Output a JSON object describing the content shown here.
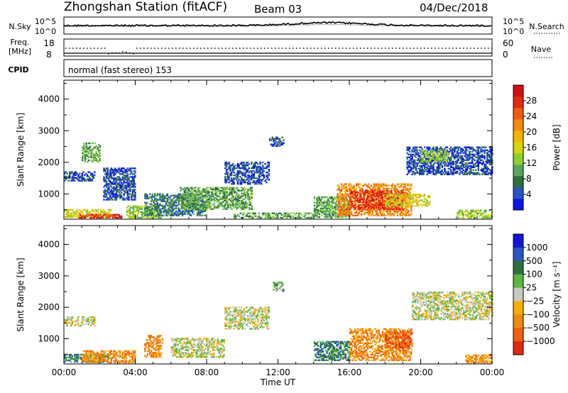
{
  "header": {
    "title": "Zhongshan Station (fitACF)",
    "beam": "Beam 03",
    "date": "04/Dec/2018"
  },
  "panels": {
    "nsky_label": "N.Sky",
    "nsearch_label": "N.Search",
    "nsky_ticks": [
      "10^5",
      "10^0"
    ],
    "nsearch_ticks": [
      "10^5",
      "10^0"
    ],
    "freq_label_line1": "Freq.",
    "freq_label_line2": "[MHz]",
    "freq_ticks": [
      "18",
      "8"
    ],
    "nave_label": "Nave",
    "nave_ticks": [
      "60",
      "0"
    ],
    "cpid_label": "CPID",
    "cpid_text": "normal (fast stereo) 153"
  },
  "chart_data": [
    {
      "type": "heatmap",
      "name": "power",
      "ylabel": "Slant Range [km]",
      "xlabel": "",
      "x_ticks": [
        "00:00",
        "04:00",
        "08:00",
        "12:00",
        "16:00",
        "20:00",
        "00:00"
      ],
      "y_ticks": [
        1000,
        2000,
        3000,
        4000
      ],
      "ylim": [
        200,
        4600
      ],
      "colorbar_label": "Power [dB]",
      "colorbar_ticks": [
        "4",
        "8",
        "12",
        "16",
        "20",
        "24",
        "28"
      ],
      "colorbar_colors": [
        "#0a17e6",
        "#2753c9",
        "#2f6f3f",
        "#58a85b",
        "#8ccf2f",
        "#d6d40f",
        "#f6b200",
        "#f58a10",
        "#f05a10",
        "#e22a10",
        "#d40f0f"
      ],
      "regions": [
        {
          "t": [
            0.0,
            1.7
          ],
          "r": [
            1400,
            1700
          ],
          "level": 1
        },
        {
          "t": [
            0.0,
            2.6
          ],
          "r": [
            250,
            480
          ],
          "level": 5
        },
        {
          "t": [
            0.8,
            3.2
          ],
          "r": [
            230,
            330
          ],
          "level": 9
        },
        {
          "t": [
            1.0,
            2.0
          ],
          "r": [
            2000,
            2600
          ],
          "level": 3
        },
        {
          "t": [
            2.2,
            4.0
          ],
          "r": [
            800,
            1800
          ],
          "level": 1
        },
        {
          "t": [
            3.5,
            5.5
          ],
          "r": [
            230,
            600
          ],
          "level": 4
        },
        {
          "t": [
            4.5,
            8.0
          ],
          "r": [
            300,
            1000
          ],
          "level": 2
        },
        {
          "t": [
            6.5,
            10.5
          ],
          "r": [
            500,
            1200
          ],
          "level": 3
        },
        {
          "t": [
            9.0,
            11.5
          ],
          "r": [
            1300,
            2000
          ],
          "level": 1
        },
        {
          "t": [
            11.5,
            12.3
          ],
          "r": [
            2500,
            2800
          ],
          "level": 1
        },
        {
          "t": [
            9.5,
            14.0
          ],
          "r": [
            230,
            400
          ],
          "level": 3
        },
        {
          "t": [
            14.0,
            16.0
          ],
          "r": [
            250,
            900
          ],
          "level": 3
        },
        {
          "t": [
            15.3,
            19.5
          ],
          "r": [
            300,
            1300
          ],
          "level": 7
        },
        {
          "t": [
            16.0,
            19.0
          ],
          "r": [
            500,
            1100
          ],
          "level": 9
        },
        {
          "t": [
            18.0,
            20.5
          ],
          "r": [
            600,
            1000
          ],
          "level": 5
        },
        {
          "t": [
            19.2,
            24.0
          ],
          "r": [
            1600,
            2500
          ],
          "level": 1
        },
        {
          "t": [
            20.0,
            21.5
          ],
          "r": [
            2000,
            2400
          ],
          "level": 4
        },
        {
          "t": [
            22.0,
            24.0
          ],
          "r": [
            230,
            500
          ],
          "level": 4
        }
      ]
    },
    {
      "type": "heatmap",
      "name": "velocity",
      "ylabel": "Slant Range [km]",
      "xlabel": "Time UT",
      "x_ticks": [
        "00:00",
        "04:00",
        "08:00",
        "12:00",
        "16:00",
        "20:00",
        "00:00"
      ],
      "y_ticks": [
        1000,
        2000,
        3000,
        4000
      ],
      "ylim": [
        200,
        4600
      ],
      "colorbar_label": "Velocity [m s⁻¹]",
      "colorbar_ticks": [
        "1000",
        "500",
        "100",
        "25",
        "−25",
        "−100",
        "−500",
        "−1000"
      ],
      "colorbar_colors": [
        "#1515d8",
        "#2956c4",
        "#2f6f3f",
        "#58b840",
        "#c8c8c0",
        "#f6b000",
        "#f08a10",
        "#f06010",
        "#e02810"
      ],
      "regions": [
        {
          "t": [
            0.0,
            1.7
          ],
          "r": [
            1400,
            1700
          ],
          "level": 4
        },
        {
          "t": [
            0.0,
            2.5
          ],
          "r": [
            250,
            480
          ],
          "level": 2
        },
        {
          "t": [
            1.0,
            4.0
          ],
          "r": [
            230,
            600
          ],
          "level": 6
        },
        {
          "t": [
            4.5,
            5.5
          ],
          "r": [
            400,
            1100
          ],
          "level": 6
        },
        {
          "t": [
            6.0,
            9.0
          ],
          "r": [
            400,
            1000
          ],
          "level": 4
        },
        {
          "t": [
            9.0,
            11.5
          ],
          "r": [
            1300,
            2000
          ],
          "level": 4
        },
        {
          "t": [
            11.7,
            12.3
          ],
          "r": [
            2500,
            2800
          ],
          "level": 3
        },
        {
          "t": [
            14.0,
            16.0
          ],
          "r": [
            300,
            900
          ],
          "level": 2
        },
        {
          "t": [
            16.0,
            19.5
          ],
          "r": [
            300,
            1300
          ],
          "level": 6
        },
        {
          "t": [
            18.0,
            19.5
          ],
          "r": [
            700,
            1200
          ],
          "level": 7
        },
        {
          "t": [
            19.5,
            24.0
          ],
          "r": [
            1600,
            2500
          ],
          "level": 4
        },
        {
          "t": [
            22.5,
            24.0
          ],
          "r": [
            230,
            500
          ],
          "level": 6
        }
      ]
    }
  ]
}
